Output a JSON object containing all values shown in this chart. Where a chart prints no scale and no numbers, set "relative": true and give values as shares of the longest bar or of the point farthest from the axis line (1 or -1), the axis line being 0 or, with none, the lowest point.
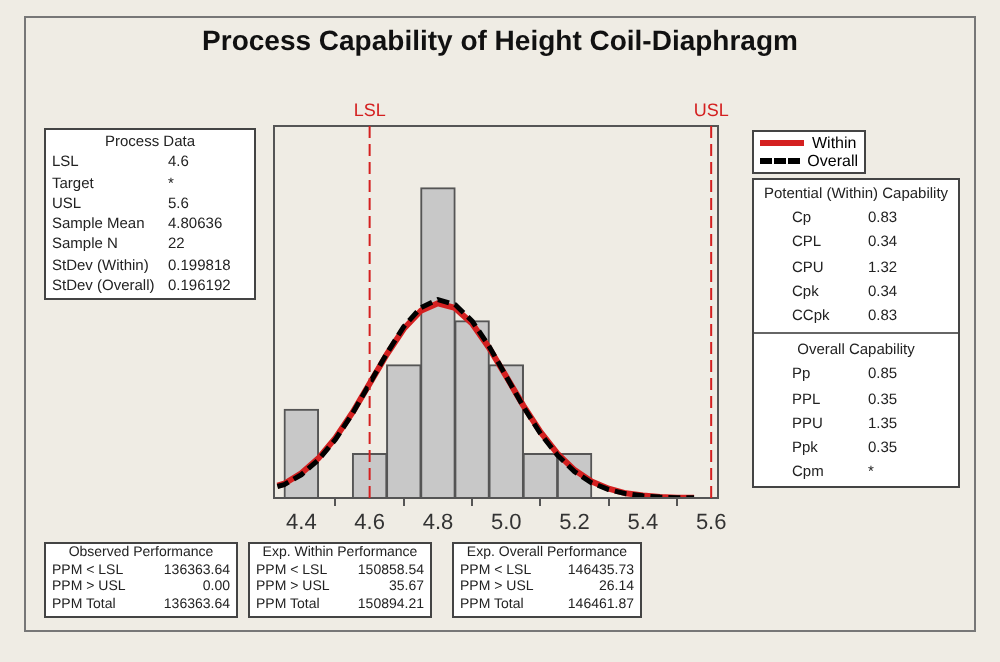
{
  "chart_data": {
    "type": "histogram",
    "title": "Process Capability of Height Coil-Diaphragm",
    "relative": true,
    "bins": [
      4.35,
      4.45,
      4.55,
      4.65,
      4.75,
      4.85,
      4.95,
      5.05,
      5.15,
      5.25
    ],
    "values": [
      0.286,
      0,
      0.143,
      0.429,
      1,
      0.571,
      0.429,
      0.143,
      0.143
    ],
    "color": "#c8c8c8",
    "series": [
      {
        "name": "Within",
        "type": "line",
        "color": "#d42020",
        "line_style": "solid",
        "x": [
          4.33,
          4.35,
          4.4,
          4.45,
          4.5,
          4.55,
          4.6,
          4.65,
          4.7,
          4.75,
          4.8,
          4.85,
          4.9,
          4.95,
          5.0,
          5.05,
          5.1,
          5.15,
          5.2,
          5.25,
          5.3,
          5.35,
          5.4,
          5.45,
          5.5,
          5.55
        ],
        "values": [
          0.04,
          0.046,
          0.08,
          0.128,
          0.194,
          0.276,
          0.369,
          0.463,
          0.546,
          0.604,
          0.628,
          0.613,
          0.563,
          0.484,
          0.392,
          0.298,
          0.213,
          0.143,
          0.09,
          0.053,
          0.03,
          0.015,
          0.008,
          0.003,
          0.001,
          0.001
        ]
      },
      {
        "name": "Overall",
        "type": "line",
        "color": "#000000",
        "line_style": "dashed",
        "x": [
          4.33,
          4.35,
          4.4,
          4.45,
          4.5,
          4.55,
          4.6,
          4.65,
          4.7,
          4.75,
          4.8,
          4.85,
          4.9,
          4.95,
          5.0,
          5.05,
          5.1,
          5.15,
          5.2,
          5.25,
          5.3,
          5.35,
          5.4,
          5.45,
          5.5,
          5.55
        ],
        "values": [
          0.037,
          0.043,
          0.075,
          0.123,
          0.189,
          0.273,
          0.369,
          0.466,
          0.553,
          0.614,
          0.64,
          0.624,
          0.571,
          0.489,
          0.392,
          0.295,
          0.208,
          0.138,
          0.085,
          0.049,
          0.027,
          0.014,
          0.007,
          0.003,
          0.001,
          0.001
        ]
      }
    ],
    "xlim": [
      4.32,
      5.62
    ],
    "xticks": [
      4.4,
      4.6,
      4.8,
      {
        "value": 5.0,
        "label": "5.0"
      },
      5.2,
      5.4,
      5.6
    ],
    "ref_lines": [
      {
        "axis": "x",
        "value": 4.6,
        "label": "LSL",
        "color": "#d42020",
        "line_style": "dashed"
      },
      {
        "axis": "x",
        "value": 5.6,
        "label": "USL",
        "color": "#d42020",
        "line_style": "dashed"
      }
    ],
    "legend": "top right",
    "grid": false,
    "annotations": [
      "Process Data",
      "LSL\t4.6",
      "Target\t*",
      "USL\t5.6",
      "Sample Mean\t4.80636",
      "Sample N\t22",
      "StDev (Within)\t0.199818",
      "StDev (Overall)\t0.196192",
      "Potential (Within) Capability",
      "Cp\t0.83",
      "CPL\t0.34",
      "CPU\t1.32",
      "Cpk\t0.34",
      "CCpk\t0.83",
      "Overall Capability",
      "Pp\t0.85",
      "PPL\t0.35",
      "PPU\t1.35",
      "Ppk\t0.35",
      "Cpm\t*",
      "Observed Performance",
      "PPM < LSL\t136363.64",
      "PPM > USL\t0.00",
      "PPM Total\t136363.64",
      "Exp. Within Performance",
      "PPM < LSL\t150858.54",
      "PPM > USL\t35.67",
      "PPM Total\t150894.21",
      "Exp. Overall Performance",
      "PPM < LSL\t146435.73",
      "PPM > USL\t26.14",
      "PPM Total\t146461.87"
    ]
  }
}
